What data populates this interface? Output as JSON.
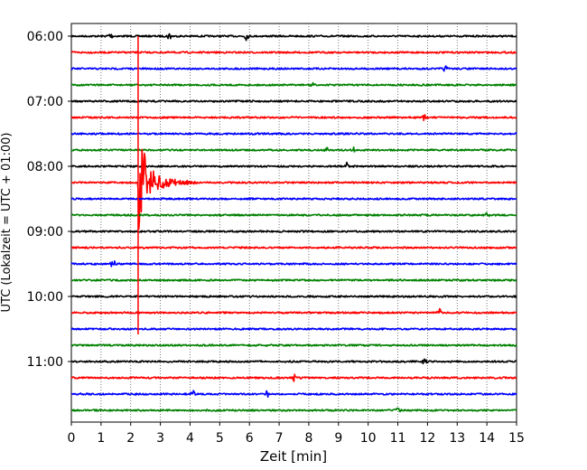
{
  "chart_data": {
    "type": "line",
    "title": "",
    "xlabel": "Zeit  [min]",
    "ylabel": "UTC (Lokalzeit = UTC + 01:00)",
    "xlim": [
      0,
      15
    ],
    "x_ticks": [
      "0",
      "1",
      "2",
      "3",
      "4",
      "5",
      "6",
      "7",
      "8",
      "9",
      "10",
      "11",
      "12",
      "13",
      "14",
      "15"
    ],
    "y_ticks": [
      "06:00",
      "07:00",
      "08:00",
      "09:00",
      "10:00",
      "11:00"
    ],
    "grid": "vertical dotted at each minute",
    "trace_interval_minutes": 15,
    "first_trace": "06:00",
    "trace_colors": [
      "#000000",
      "#ff0000",
      "#0000ff",
      "#008000"
    ],
    "traces": [
      {
        "start": "06:00",
        "color": "#000000",
        "events": [
          {
            "t": 1.3,
            "amp": 5
          },
          {
            "t": 3.3,
            "amp": 4
          },
          {
            "t": 5.9,
            "amp": 4
          }
        ]
      },
      {
        "start": "06:15",
        "color": "#ff0000",
        "events": []
      },
      {
        "start": "06:30",
        "color": "#0000ff",
        "events": [
          {
            "t": 12.6,
            "amp": 3
          }
        ]
      },
      {
        "start": "06:45",
        "color": "#008000",
        "events": [
          {
            "t": 8.1,
            "amp": 3
          }
        ]
      },
      {
        "start": "07:00",
        "color": "#000000",
        "events": []
      },
      {
        "start": "07:15",
        "color": "#ff0000",
        "events": [
          {
            "t": 11.9,
            "amp": 3
          }
        ]
      },
      {
        "start": "07:30",
        "color": "#0000ff",
        "events": []
      },
      {
        "start": "07:45",
        "color": "#008000",
        "events": [
          {
            "t": 8.6,
            "amp": 3
          },
          {
            "t": 9.5,
            "amp": 3
          }
        ]
      },
      {
        "start": "08:00",
        "color": "#000000",
        "events": [
          {
            "t": 9.3,
            "amp": 4
          }
        ]
      },
      {
        "start": "08:15",
        "color": "#ff0000",
        "events": [
          {
            "t": 2.25,
            "amp": 60,
            "quake": true
          }
        ]
      },
      {
        "start": "08:30",
        "color": "#0000ff",
        "events": []
      },
      {
        "start": "08:45",
        "color": "#008000",
        "events": [
          {
            "t": 14.0,
            "amp": 3
          }
        ]
      },
      {
        "start": "09:00",
        "color": "#000000",
        "events": []
      },
      {
        "start": "09:15",
        "color": "#ff0000",
        "events": []
      },
      {
        "start": "09:30",
        "color": "#0000ff",
        "events": [
          {
            "t": 1.4,
            "amp": 6
          }
        ]
      },
      {
        "start": "09:45",
        "color": "#008000",
        "events": []
      },
      {
        "start": "10:00",
        "color": "#000000",
        "events": []
      },
      {
        "start": "10:15",
        "color": "#ff0000",
        "events": [
          {
            "t": 12.4,
            "amp": 4
          }
        ]
      },
      {
        "start": "10:30",
        "color": "#0000ff",
        "events": []
      },
      {
        "start": "10:45",
        "color": "#008000",
        "events": []
      },
      {
        "start": "11:00",
        "color": "#000000",
        "events": [
          {
            "t": 11.9,
            "amp": 4
          }
        ]
      },
      {
        "start": "11:15",
        "color": "#ff0000",
        "events": [
          {
            "t": 7.5,
            "amp": 4
          }
        ]
      },
      {
        "start": "11:30",
        "color": "#0000ff",
        "events": [
          {
            "t": 4.1,
            "amp": 4
          },
          {
            "t": 6.6,
            "amp": 3
          }
        ]
      },
      {
        "start": "11:45",
        "color": "#008000",
        "events": [
          {
            "t": 11.0,
            "amp": 3
          }
        ]
      }
    ],
    "marker_line": {
      "x": 2.25,
      "from": "06:15",
      "to": "10:45",
      "color": "#ff0000"
    }
  }
}
